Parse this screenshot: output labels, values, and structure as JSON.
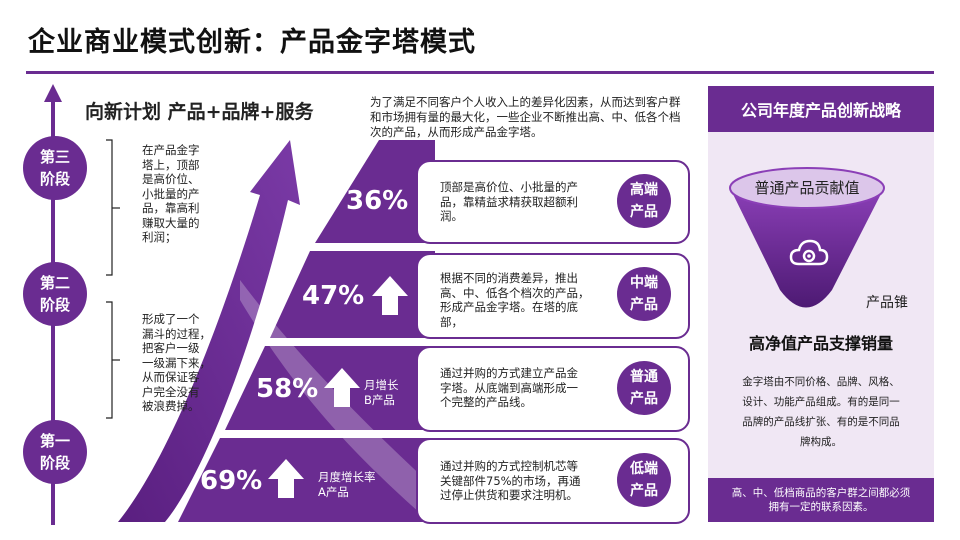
{
  "title": "企业商业模式创新：产品金字塔模式",
  "subtitle": "向新计划 产品+品牌+服务",
  "intro": "为了满足不同客户个人收入上的差异化因素，从而达到客户群和市场拥有量的最大化，一些企业不断推出高、中、低各个档次的产品，从而形成产品金字塔。",
  "stages": [
    {
      "line1": "第三",
      "line2": "阶段",
      "desc": [
        "在产品金字",
        "塔上，顶部",
        "是高价位、",
        "小批量的产",
        "品，靠高利",
        "赚取大量的",
        "利润；"
      ]
    },
    {
      "line1": "第二",
      "line2": "阶段",
      "desc": [
        "形成了一个",
        "漏斗的过程，",
        "把客户一级",
        "一级漏下来，",
        "从而保证客",
        "户完全没有",
        "被浪费掉。"
      ]
    },
    {
      "line1": "第一",
      "line2": "阶段"
    }
  ],
  "tiers": [
    {
      "percent": "36%",
      "note": "",
      "desc": [
        "顶部是高价位、小批量的产",
        "品，靠精益求精获取超额利",
        "润。"
      ],
      "badge1": "高端",
      "badge2": "产品"
    },
    {
      "percent": "47%",
      "note": "",
      "desc": [
        "根据不同的消费差异，推出",
        "高、中、低各个档次的产品，",
        "形成产品金字塔。在塔的底",
        "部，"
      ],
      "badge1": "中端",
      "badge2": "产品"
    },
    {
      "percent": "58%",
      "note": "月增长\nB产品",
      "note1": "月增长",
      "note2": "B产品",
      "desc": [
        "通过并购的方式建立产品金",
        "字塔。从底端到高端形成一",
        "个完整的产品线。"
      ],
      "badge1": "普通",
      "badge2": "产品"
    },
    {
      "percent": "69%",
      "note1": "月度增长率",
      "note2": "A产品",
      "desc": [
        "通过并购的方式控制机芯等",
        "关键部件75%的市场，再通",
        "过停止供货和要求注明机。"
      ],
      "badge1": "低端",
      "badge2": "产品"
    }
  ],
  "panel": {
    "header": "公司年度产品创新战略",
    "funnel_top": "普通产品贡献值",
    "funnel_label": "产品锥",
    "headline": "高净值产品支撑销量",
    "body": [
      "金字塔由不同价格、品牌、风格、",
      "设计、功能产品组成。有的是同一",
      "品牌的产品线扩张、有的是不同品",
      "牌构成。"
    ],
    "footer": [
      "高、中、低档商品的客户群之间都必须",
      "拥有一定的联系因素。"
    ],
    "icon": "cloud-gear-icon"
  },
  "colors": {
    "accent": "#6a2c91",
    "panel_bg": "#f0e7f4"
  }
}
